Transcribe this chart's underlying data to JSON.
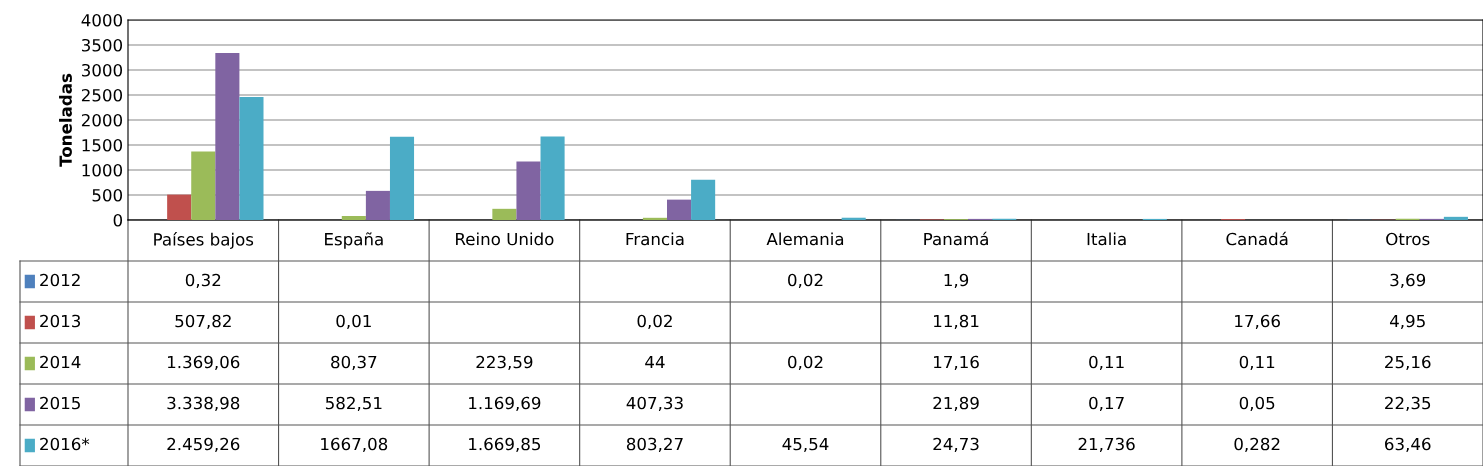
{
  "chart_data": {
    "type": "bar",
    "ylabel": "Toneladas",
    "categories": [
      "Países bajos",
      "España",
      "Reino Unido",
      "Francia",
      "Alemania",
      "Panamá",
      "Italia",
      "Canadá",
      "Otros"
    ],
    "series": [
      {
        "name": "2012",
        "color": "#4f81bd",
        "values": [
          0.32,
          null,
          null,
          null,
          0.02,
          1.9,
          null,
          null,
          3.69
        ],
        "value_labels": [
          "0,32",
          null,
          null,
          null,
          "0,02",
          "1,9",
          null,
          null,
          "3,69"
        ]
      },
      {
        "name": "2013",
        "color": "#c0504d",
        "values": [
          507.82,
          0.01,
          null,
          0.02,
          null,
          11.81,
          null,
          17.66,
          4.95
        ],
        "value_labels": [
          "507,82",
          "0,01",
          null,
          "0,02",
          null,
          "11,81",
          null,
          "17,66",
          "4,95"
        ]
      },
      {
        "name": "2014",
        "color": "#9bbb59",
        "values": [
          1369.06,
          80.37,
          223.59,
          44,
          0.02,
          17.16,
          0.11,
          0.11,
          25.16
        ],
        "value_labels": [
          "1.369,06",
          "80,37",
          "223,59",
          "44",
          "0,02",
          "17,16",
          "0,11",
          "0,11",
          "25,16"
        ]
      },
      {
        "name": "2015",
        "color": "#8064a2",
        "values": [
          3338.98,
          582.51,
          1169.69,
          407.33,
          null,
          21.89,
          0.17,
          0.05,
          22.35
        ],
        "value_labels": [
          "3.338,98",
          "582,51",
          "1.169,69",
          "407,33",
          null,
          "21,89",
          "0,17",
          "0,05",
          "22,35"
        ]
      },
      {
        "name": "2016*",
        "color": "#4bacc6",
        "values": [
          2459.26,
          1667.08,
          1669.85,
          803.27,
          45.54,
          24.73,
          21.736,
          0.282,
          63.46
        ],
        "value_labels": [
          "2.459,26",
          "1667,08",
          "1.669,85",
          "803,27",
          "45,54",
          "24,73",
          "21,736",
          "0,282",
          "63,46"
        ]
      }
    ],
    "ylim": [
      0,
      4000
    ],
    "yticks": [
      0,
      500,
      1000,
      1500,
      2000,
      2500,
      3000,
      3500,
      4000
    ],
    "grid": "y",
    "legend": "bottom"
  }
}
